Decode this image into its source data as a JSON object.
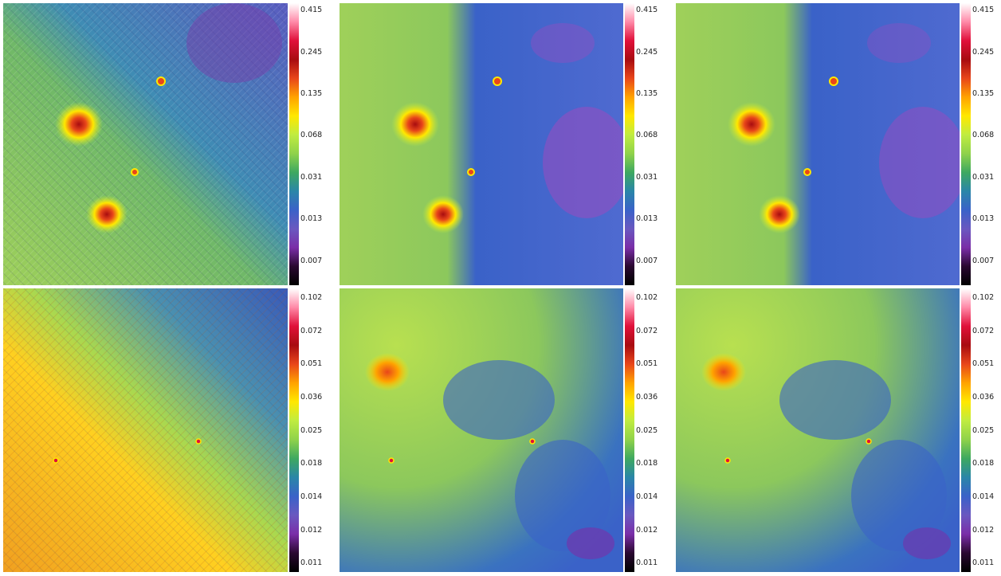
{
  "colors": {
    "colormap": [
      "#ffffff",
      "#ff8aa8",
      "#e0103a",
      "#a80c10",
      "#e8461a",
      "#ffa300",
      "#ffe800",
      "#c0ec40",
      "#8fd24a",
      "#3ea860",
      "#2a86a8",
      "#3a62c8",
      "#6a58c0",
      "#7a2ea8",
      "#2a0830",
      "#000000"
    ]
  },
  "rows": [
    {
      "colorbar_ticks": [
        "0.415",
        "0.245",
        "0.135",
        "0.068",
        "0.031",
        "0.013",
        "0.007"
      ],
      "panels": [
        {
          "label": "",
          "style": "striped"
        },
        {
          "label": "",
          "style": "smooth"
        },
        {
          "label": "",
          "style": "smooth"
        }
      ]
    },
    {
      "colorbar_ticks": [
        "0.102",
        "0.072",
        "0.051",
        "0.036",
        "0.025",
        "0.018",
        "0.014",
        "0.012",
        "0.011"
      ],
      "panels": [
        {
          "label": "",
          "style": "striped"
        },
        {
          "label": "",
          "style": "smooth"
        },
        {
          "label": "",
          "style": "smooth"
        }
      ]
    }
  ]
}
